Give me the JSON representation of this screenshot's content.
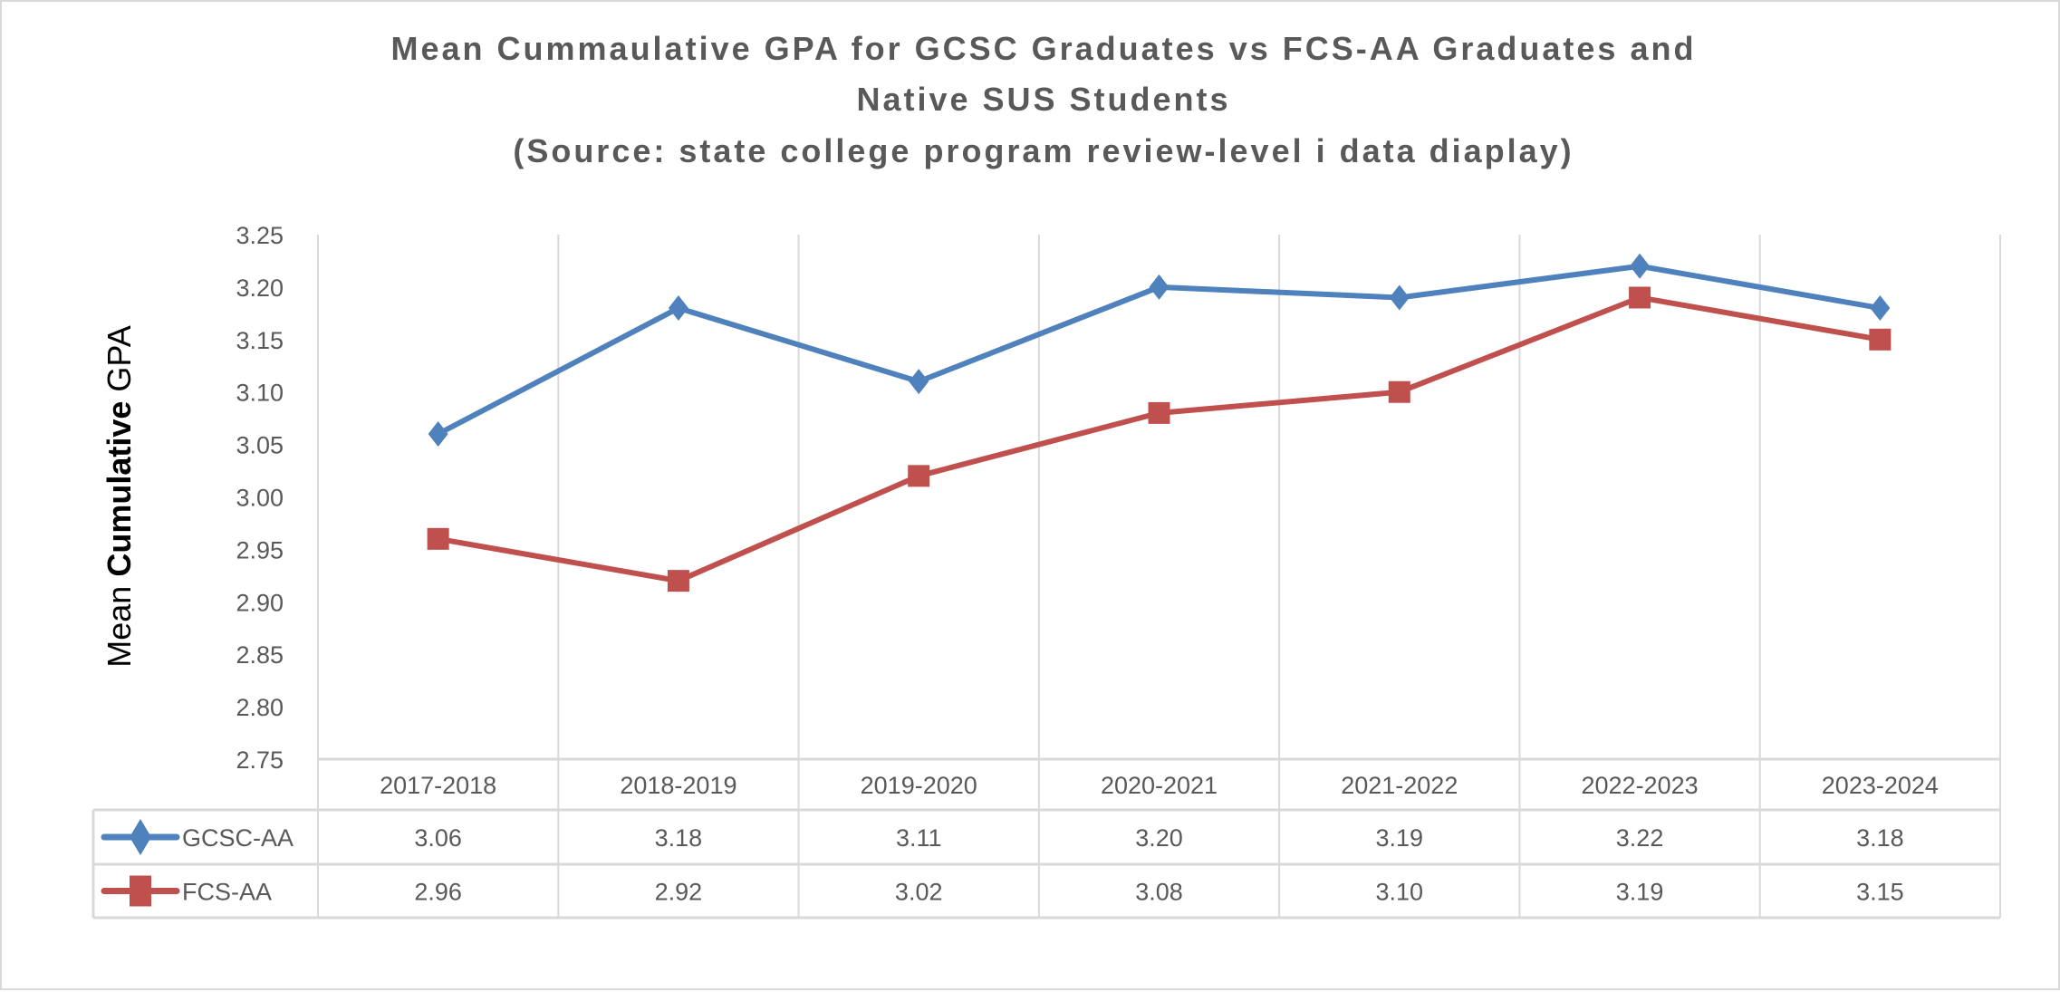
{
  "chart_data": {
    "type": "line",
    "title_lines": [
      "Mean Cummaulative GPA for GCSC Graduates vs FCS-AA Graduates and",
      "Native SUS Students",
      "(Source: state college program review-level i data diaplay)"
    ],
    "ylabel_parts": [
      "Mean ",
      "Cumulative",
      " GPA"
    ],
    "xlabel": "",
    "ylim": [
      2.75,
      3.25
    ],
    "yticks": [
      "2.75",
      "2.80",
      "2.85",
      "2.90",
      "2.95",
      "3.00",
      "3.05",
      "3.10",
      "3.15",
      "3.20",
      "3.25"
    ],
    "categories": [
      "2017-2018",
      "2018-2019",
      "2019-2020",
      "2020-2021",
      "2021-2022",
      "2022-2023",
      "2023-2024"
    ],
    "grid": "vertical",
    "legend": "data-table",
    "series": [
      {
        "name": "GCSC-AA",
        "marker": "diamond",
        "color": "#4f81bd",
        "values": [
          3.06,
          3.18,
          3.11,
          3.2,
          3.19,
          3.22,
          3.18
        ],
        "labels": [
          "3.06",
          "3.18",
          "3.11",
          "3.20",
          "3.19",
          "3.22",
          "3.18"
        ]
      },
      {
        "name": "FCS-AA",
        "marker": "square",
        "color": "#c0504d",
        "values": [
          2.96,
          2.92,
          3.02,
          3.08,
          3.1,
          3.19,
          3.15
        ],
        "labels": [
          "2.96",
          "2.92",
          "3.02",
          "3.08",
          "3.10",
          "3.19",
          "3.15"
        ]
      }
    ]
  }
}
